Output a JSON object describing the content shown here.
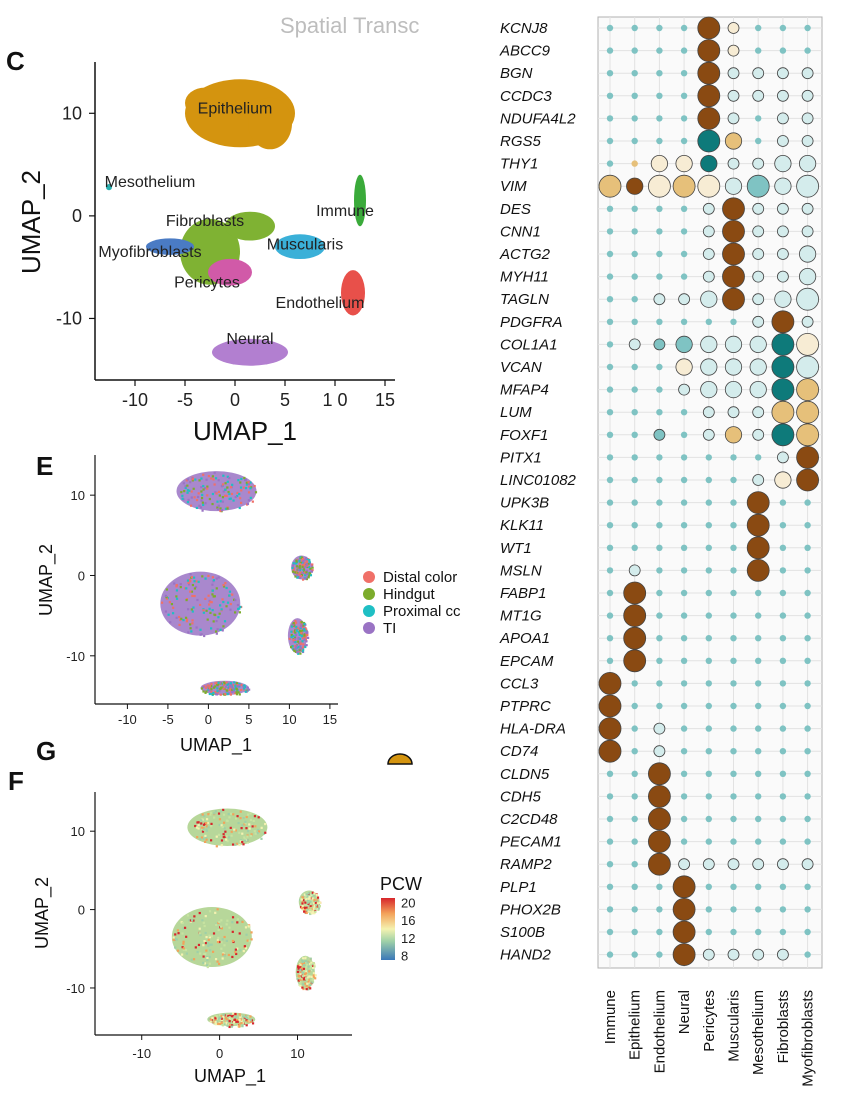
{
  "figure_header": "Spatial Transc",
  "panels": {
    "C": {
      "letter": "C"
    },
    "E": {
      "letter": "E"
    },
    "G": {
      "letter": "G"
    },
    "F": {
      "letter": "F"
    }
  },
  "colors": {
    "epithelium": "#d4940f",
    "fibroblasts": "#7fb233",
    "myofibroblasts": "#4a7bc4",
    "pericytes": "#d15aa8",
    "muscularis": "#3ab0d8",
    "endothelium": "#e8504a",
    "neural": "#b27fd0",
    "immune": "#3aaa3a",
    "mesothelium": "#2ab0b0",
    "distal_colon": "#f07068",
    "hindgut": "#7cac2c",
    "proximal_colon": "#1fbfc4",
    "ti": "#9a73c4",
    "dot_brown": "#8a4a12",
    "dot_tan": "#e6c07a",
    "dot_pale": "#f7ecd4",
    "dot_lightblue": "#d4ecec",
    "dot_teal": "#7fc3c3",
    "dot_darkteal": "#0e7a7a"
  },
  "chart_data": [
    {
      "id": "C",
      "type": "scatter",
      "title": "",
      "xlabel": "UMAP_1",
      "ylabel": "UMAP_2",
      "xlim": [
        -14,
        16
      ],
      "ylim": [
        -16,
        15
      ],
      "xticks": [
        "-10",
        "-5",
        "0",
        "5",
        "1 0",
        "15"
      ],
      "xtick_values": [
        -10,
        -5,
        0,
        5,
        10,
        15
      ],
      "yticks": [
        "10",
        "0",
        "-10"
      ],
      "ytick_values": [
        10,
        0,
        -10
      ],
      "clusters": [
        {
          "name": "Epithelium",
          "label_xy": [
            0,
            10
          ],
          "color_key": "epithelium"
        },
        {
          "name": "Mesothelium",
          "label_xy": [
            -8.5,
            2.8
          ],
          "color_key": "mesothelium"
        },
        {
          "name": "Immune",
          "label_xy": [
            11,
            0
          ],
          "color_key": "immune"
        },
        {
          "name": "Fibroblasts",
          "label_xy": [
            -3,
            -1
          ],
          "color_key": "fibroblasts"
        },
        {
          "name": "Muscularis",
          "label_xy": [
            7,
            -3.3
          ],
          "color_key": "muscularis"
        },
        {
          "name": "Myofibroblasts",
          "label_xy": [
            -8.5,
            -4
          ],
          "color_key": "myofibroblasts"
        },
        {
          "name": "Pericytes",
          "label_xy": [
            -2.8,
            -7
          ],
          "color_key": "pericytes"
        },
        {
          "name": "Endothelium",
          "label_xy": [
            8.5,
            -9
          ],
          "color_key": "endothelium"
        },
        {
          "name": "Neural",
          "label_xy": [
            1.5,
            -12.5
          ],
          "color_key": "neural"
        }
      ]
    },
    {
      "id": "E",
      "type": "scatter",
      "xlabel": "UMAP_1",
      "ylabel": "UMAP_2",
      "xlim": [
        -14,
        16
      ],
      "ylim": [
        -16,
        15
      ],
      "xticks": [
        "-10",
        "-5",
        "0",
        "5",
        "10",
        "15"
      ],
      "xtick_values": [
        -10,
        -5,
        0,
        5,
        10,
        15
      ],
      "yticks": [
        "10",
        "0",
        "-10"
      ],
      "ytick_values": [
        10,
        0,
        -10
      ],
      "legend": [
        {
          "label": "Distal color",
          "color_key": "distal_colon"
        },
        {
          "label": "Hindgut",
          "color_key": "hindgut"
        },
        {
          "label": "Proximal cc",
          "color_key": "proximal_colon"
        },
        {
          "label": "TI",
          "color_key": "ti"
        }
      ]
    },
    {
      "id": "F",
      "type": "scatter",
      "xlabel": "UMAP_1",
      "ylabel": "UMAP_2",
      "xlim": [
        -16,
        17
      ],
      "ylim": [
        -16,
        15
      ],
      "xticks": [
        "-10",
        "0",
        "10"
      ],
      "xtick_values": [
        -10,
        0,
        10
      ],
      "yticks": [
        "10",
        "0",
        "-10"
      ],
      "ytick_values": [
        10,
        0,
        -10
      ],
      "colorbar": {
        "title": "PCW",
        "ticks": [
          "20",
          "16",
          "12",
          "8"
        ],
        "tick_values": [
          20,
          16,
          12,
          8
        ],
        "range": [
          7,
          21
        ]
      }
    },
    {
      "id": "dotplot",
      "type": "dot",
      "genes": [
        "KCNJ8",
        "ABCC9",
        "BGN",
        "CCDC3",
        "NDUFA4L2",
        "RGS5",
        "THY1",
        "VIM",
        "DES",
        "CNN1",
        "ACTG2",
        "MYH11",
        "TAGLN",
        "PDGFRA",
        "COL1A1",
        "VCAN",
        "MFAP4",
        "LUM",
        "FOXF1",
        "PITX1",
        "LINC01082",
        "UPK3B",
        "KLK11",
        "WT1",
        "MSLN",
        "FABP1",
        "MT1G",
        "APOA1",
        "EPCAM",
        "CCL3",
        "PTPRC",
        "HLA-DRA",
        "CD74",
        "CLDN5",
        "CDH5",
        "C2CD48",
        "PECAM1",
        "RAMP2",
        "PLP1",
        "PHOX2B",
        "S100B",
        "HAND2"
      ],
      "cell_types": [
        "Immune",
        "Epithelium",
        "Endothelium",
        "Neural",
        "Pericytes",
        "Muscularis",
        "Mesothelium",
        "Fibroblasts",
        "Myofibroblasts"
      ],
      "size_scale_note": "size 0-4",
      "color_scale_note": "0 pale blue to 5 brown",
      "size": [
        [
          1,
          1,
          1,
          1,
          4,
          2,
          1,
          1,
          1
        ],
        [
          1,
          1,
          1,
          1,
          4,
          2,
          1,
          1,
          1
        ],
        [
          1,
          1,
          1,
          1,
          4,
          2,
          2,
          2,
          2
        ],
        [
          1,
          1,
          1,
          1,
          4,
          2,
          2,
          2,
          2
        ],
        [
          1,
          1,
          1,
          1,
          4,
          2,
          1,
          2,
          2
        ],
        [
          1,
          1,
          1,
          1,
          4,
          3,
          1,
          2,
          2
        ],
        [
          1,
          1,
          3,
          3,
          3,
          2,
          2,
          3,
          3
        ],
        [
          4,
          3,
          4,
          4,
          4,
          3,
          4,
          3,
          4
        ],
        [
          1,
          1,
          1,
          1,
          2,
          4,
          2,
          2,
          2
        ],
        [
          1,
          1,
          1,
          1,
          2,
          4,
          2,
          2,
          2
        ],
        [
          1,
          1,
          1,
          1,
          2,
          4,
          2,
          2,
          3
        ],
        [
          1,
          1,
          1,
          1,
          2,
          4,
          2,
          2,
          3
        ],
        [
          1,
          1,
          2,
          2,
          3,
          4,
          2,
          3,
          4
        ],
        [
          1,
          1,
          1,
          1,
          1,
          1,
          2,
          4,
          2
        ],
        [
          1,
          2,
          2,
          3,
          3,
          3,
          3,
          4,
          4
        ],
        [
          1,
          1,
          1,
          3,
          3,
          3,
          3,
          4,
          4
        ],
        [
          1,
          1,
          1,
          2,
          3,
          3,
          3,
          4,
          4
        ],
        [
          1,
          1,
          1,
          1,
          2,
          2,
          2,
          4,
          4
        ],
        [
          1,
          1,
          2,
          1,
          2,
          3,
          2,
          4,
          4
        ],
        [
          1,
          1,
          1,
          1,
          1,
          1,
          1,
          2,
          4
        ],
        [
          1,
          1,
          1,
          1,
          1,
          1,
          2,
          3,
          4
        ],
        [
          1,
          1,
          1,
          1,
          1,
          1,
          4,
          1,
          1
        ],
        [
          1,
          1,
          1,
          1,
          1,
          1,
          4,
          1,
          1
        ],
        [
          1,
          1,
          1,
          1,
          1,
          1,
          4,
          1,
          1
        ],
        [
          1,
          2,
          1,
          1,
          1,
          1,
          4,
          1,
          1
        ],
        [
          1,
          4,
          1,
          1,
          1,
          1,
          1,
          1,
          1
        ],
        [
          1,
          4,
          1,
          1,
          1,
          1,
          1,
          1,
          1
        ],
        [
          1,
          4,
          1,
          1,
          1,
          1,
          1,
          1,
          1
        ],
        [
          1,
          4,
          1,
          1,
          1,
          1,
          1,
          1,
          1
        ],
        [
          4,
          1,
          1,
          1,
          1,
          1,
          1,
          1,
          1
        ],
        [
          4,
          1,
          1,
          1,
          1,
          1,
          1,
          1,
          1
        ],
        [
          4,
          1,
          2,
          1,
          1,
          1,
          1,
          1,
          1
        ],
        [
          4,
          1,
          2,
          1,
          1,
          1,
          1,
          1,
          1
        ],
        [
          1,
          1,
          4,
          1,
          1,
          1,
          1,
          1,
          1
        ],
        [
          1,
          1,
          4,
          1,
          1,
          1,
          1,
          1,
          1
        ],
        [
          1,
          1,
          4,
          1,
          1,
          1,
          1,
          1,
          1
        ],
        [
          1,
          1,
          4,
          1,
          1,
          1,
          1,
          1,
          1
        ],
        [
          1,
          1,
          4,
          2,
          2,
          2,
          2,
          2,
          2
        ],
        [
          1,
          1,
          1,
          4,
          1,
          1,
          1,
          1,
          1
        ],
        [
          1,
          1,
          1,
          4,
          1,
          1,
          1,
          1,
          1
        ],
        [
          1,
          1,
          1,
          4,
          1,
          1,
          1,
          1,
          1
        ],
        [
          1,
          1,
          1,
          4,
          2,
          2,
          2,
          2,
          1
        ]
      ],
      "color": [
        [
          1,
          1,
          1,
          1,
          5,
          0,
          1,
          1,
          1
        ],
        [
          1,
          1,
          1,
          1,
          5,
          0,
          1,
          1,
          1
        ],
        [
          1,
          1,
          1,
          1,
          5,
          1,
          1,
          1,
          1
        ],
        [
          1,
          1,
          1,
          1,
          5,
          1,
          1,
          1,
          1
        ],
        [
          1,
          1,
          1,
          1,
          5,
          1,
          1,
          1,
          1
        ],
        [
          1,
          1,
          1,
          1,
          4,
          3,
          1,
          1,
          1
        ],
        [
          2,
          3,
          0,
          0,
          4,
          1,
          1,
          1,
          1
        ],
        [
          3,
          5,
          0,
          3,
          0,
          1,
          2,
          1,
          1
        ],
        [
          1,
          1,
          1,
          1,
          1,
          5,
          1,
          1,
          1
        ],
        [
          1,
          1,
          1,
          1,
          1,
          5,
          1,
          1,
          1
        ],
        [
          1,
          1,
          1,
          1,
          1,
          5,
          1,
          1,
          1
        ],
        [
          1,
          1,
          1,
          1,
          1,
          5,
          1,
          1,
          1
        ],
        [
          1,
          1,
          1,
          1,
          1,
          5,
          1,
          1,
          1
        ],
        [
          1,
          1,
          1,
          1,
          1,
          1,
          1,
          5,
          1
        ],
        [
          2,
          1,
          2,
          2,
          1,
          1,
          1,
          4,
          0
        ],
        [
          1,
          1,
          1,
          0,
          1,
          1,
          1,
          4,
          1
        ],
        [
          1,
          1,
          1,
          1,
          1,
          1,
          1,
          4,
          3
        ],
        [
          1,
          1,
          1,
          1,
          1,
          1,
          1,
          3,
          3
        ],
        [
          1,
          1,
          2,
          1,
          1,
          3,
          1,
          4,
          3
        ],
        [
          1,
          1,
          1,
          1,
          1,
          1,
          1,
          1,
          5
        ],
        [
          1,
          1,
          1,
          1,
          1,
          1,
          1,
          0,
          5
        ],
        [
          1,
          1,
          1,
          1,
          1,
          1,
          5,
          1,
          1
        ],
        [
          1,
          1,
          1,
          1,
          1,
          1,
          5,
          1,
          1
        ],
        [
          1,
          1,
          1,
          1,
          1,
          1,
          5,
          1,
          1
        ],
        [
          1,
          1,
          1,
          1,
          1,
          1,
          5,
          1,
          1
        ],
        [
          1,
          5,
          1,
          1,
          1,
          1,
          1,
          1,
          1
        ],
        [
          1,
          5,
          1,
          1,
          1,
          1,
          1,
          1,
          1
        ],
        [
          1,
          5,
          1,
          1,
          1,
          1,
          1,
          1,
          1
        ],
        [
          1,
          5,
          1,
          1,
          1,
          1,
          1,
          1,
          1
        ],
        [
          5,
          1,
          1,
          1,
          1,
          1,
          1,
          1,
          1
        ],
        [
          5,
          1,
          1,
          1,
          1,
          1,
          1,
          1,
          1
        ],
        [
          5,
          1,
          1,
          1,
          1,
          1,
          1,
          1,
          1
        ],
        [
          5,
          1,
          1,
          1,
          1,
          1,
          1,
          1,
          1
        ],
        [
          1,
          1,
          5,
          1,
          1,
          1,
          1,
          1,
          1
        ],
        [
          1,
          1,
          5,
          1,
          1,
          1,
          1,
          1,
          1
        ],
        [
          1,
          1,
          5,
          1,
          1,
          1,
          1,
          1,
          1
        ],
        [
          1,
          1,
          5,
          1,
          1,
          1,
          1,
          1,
          1
        ],
        [
          1,
          1,
          5,
          1,
          1,
          1,
          1,
          1,
          1
        ],
        [
          1,
          1,
          1,
          5,
          1,
          1,
          1,
          1,
          1
        ],
        [
          1,
          1,
          1,
          5,
          1,
          1,
          1,
          1,
          1
        ],
        [
          1,
          1,
          1,
          5,
          1,
          1,
          1,
          1,
          1
        ],
        [
          1,
          1,
          1,
          5,
          1,
          1,
          1,
          1,
          1
        ]
      ]
    }
  ]
}
